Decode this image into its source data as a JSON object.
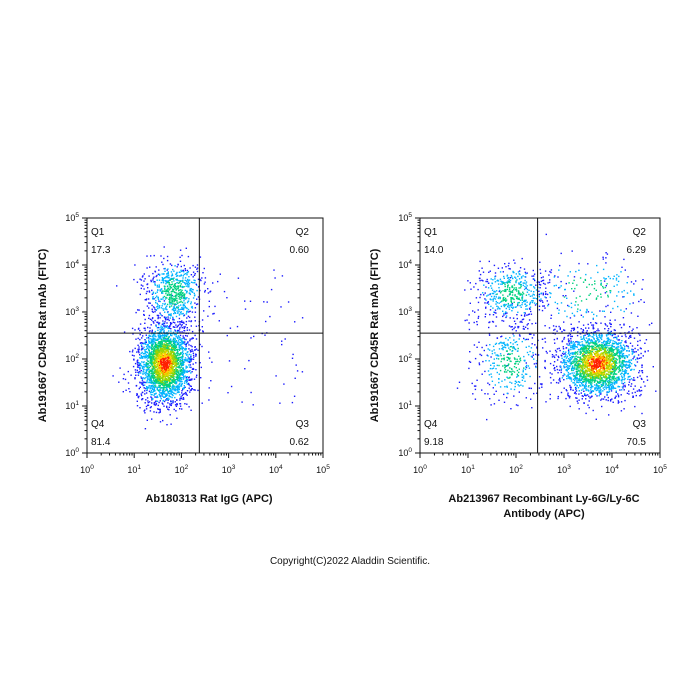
{
  "chart_data": [
    {
      "type": "scatter",
      "plot_kind": "flow-cytometry density dot plot",
      "xlabel": [
        "Ab180313 Rat IgG (APC)"
      ],
      "ylabel": "Ab191667 CD45R Rat mAb (FITC)",
      "x_scale": "log",
      "y_scale": "log",
      "xlim": [
        0,
        5
      ],
      "ylim": [
        0,
        5
      ],
      "x_tick_labels": [
        {
          "base": "10",
          "exp": "0"
        },
        {
          "base": "10",
          "exp": "1"
        },
        {
          "base": "10",
          "exp": "2"
        },
        {
          "base": "10",
          "exp": "3"
        },
        {
          "base": "10",
          "exp": "4"
        },
        {
          "base": "10",
          "exp": "5"
        }
      ],
      "y_tick_labels": [
        {
          "base": "10",
          "exp": "0"
        },
        {
          "base": "10",
          "exp": "1"
        },
        {
          "base": "10",
          "exp": "2"
        },
        {
          "base": "10",
          "exp": "3"
        },
        {
          "base": "10",
          "exp": "4"
        },
        {
          "base": "10",
          "exp": "5"
        }
      ],
      "gate_x_log": 2.38,
      "gate_y_log": 2.55,
      "quadrants": [
        {
          "name": "Q1",
          "value": "17.3",
          "position": "top-left"
        },
        {
          "name": "Q2",
          "value": "0.60",
          "position": "top-right"
        },
        {
          "name": "Q3",
          "value": "0.62",
          "position": "bottom-right"
        },
        {
          "name": "Q4",
          "value": "81.4",
          "position": "bottom-left"
        }
      ],
      "populations": [
        {
          "cx_log": 1.65,
          "cy_log": 1.9,
          "sx": 0.28,
          "sy": 0.42,
          "weight": 0.8
        },
        {
          "cx_log": 1.85,
          "cy_log": 3.4,
          "sx": 0.3,
          "sy": 0.35,
          "weight": 0.2
        }
      ],
      "density_colors": [
        "#1a1aff",
        "#00b4ff",
        "#00d080",
        "#9bd400",
        "#ffd400",
        "#ff2000"
      ]
    },
    {
      "type": "scatter",
      "plot_kind": "flow-cytometry density dot plot",
      "xlabel": [
        "Ab213967 Recombinant Ly-6G/Ly-6C",
        "Antibody (APC)"
      ],
      "ylabel": "Ab191667 CD45R Rat mAb (FITC)",
      "x_scale": "log",
      "y_scale": "log",
      "xlim": [
        0,
        5
      ],
      "ylim": [
        0,
        5
      ],
      "x_tick_labels": [
        {
          "base": "10",
          "exp": "0"
        },
        {
          "base": "10",
          "exp": "1"
        },
        {
          "base": "10",
          "exp": "2"
        },
        {
          "base": "10",
          "exp": "3"
        },
        {
          "base": "10",
          "exp": "4"
        },
        {
          "base": "10",
          "exp": "5"
        }
      ],
      "y_tick_labels": [
        {
          "base": "10",
          "exp": "0"
        },
        {
          "base": "10",
          "exp": "1"
        },
        {
          "base": "10",
          "exp": "2"
        },
        {
          "base": "10",
          "exp": "3"
        },
        {
          "base": "10",
          "exp": "4"
        },
        {
          "base": "10",
          "exp": "5"
        }
      ],
      "gate_x_log": 2.45,
      "gate_y_log": 2.55,
      "quadrants": [
        {
          "name": "Q1",
          "value": "14.0",
          "position": "top-left"
        },
        {
          "name": "Q2",
          "value": "6.29",
          "position": "top-right"
        },
        {
          "name": "Q3",
          "value": "70.5",
          "position": "bottom-right"
        },
        {
          "name": "Q4",
          "value": "9.18",
          "position": "bottom-left"
        }
      ],
      "populations": [
        {
          "cx_log": 3.7,
          "cy_log": 1.9,
          "sx": 0.4,
          "sy": 0.35,
          "weight": 0.7
        },
        {
          "cx_log": 1.9,
          "cy_log": 3.4,
          "sx": 0.35,
          "sy": 0.3,
          "weight": 0.14
        },
        {
          "cx_log": 1.9,
          "cy_log": 1.9,
          "sx": 0.35,
          "sy": 0.4,
          "weight": 0.1
        },
        {
          "cx_log": 3.5,
          "cy_log": 3.4,
          "sx": 0.6,
          "sy": 0.4,
          "weight": 0.06
        }
      ],
      "density_colors": [
        "#1a1aff",
        "#00b4ff",
        "#00d080",
        "#9bd400",
        "#ffd400",
        "#ff2000"
      ]
    }
  ],
  "footer": "Copyright(C)2022 Aladdin Scientific."
}
